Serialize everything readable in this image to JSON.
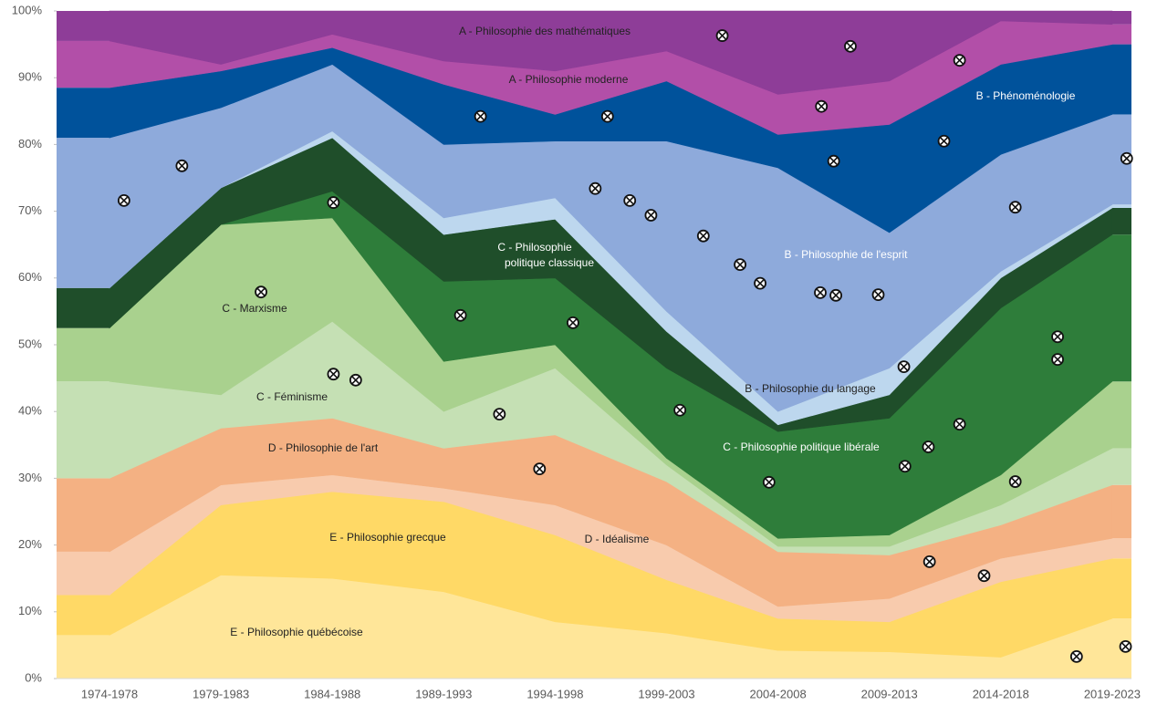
{
  "chart_data": {
    "type": "stacked_area_percent",
    "categories": [
      "1974-1978",
      "1979-1983",
      "1984-1988",
      "1989-1993",
      "1994-1998",
      "1999-2003",
      "2004-2008",
      "2009-2013",
      "2014-2018",
      "2019-2023"
    ],
    "series": [
      {
        "name": "E - Philosophie québécoise",
        "color": "#ffe699",
        "values": [
          6.5,
          15.5,
          15,
          13,
          8.5,
          6.8,
          4.2,
          4,
          3.2,
          9
        ]
      },
      {
        "name": "E - Philosophie grecque",
        "color": "#ffd966",
        "values": [
          6,
          10.5,
          13,
          13.5,
          13,
          8,
          4.8,
          4.5,
          11.3,
          9
        ]
      },
      {
        "name": "D - Idéalisme",
        "color": "#f8cbad",
        "values": [
          6.5,
          3,
          2.5,
          2,
          4.5,
          5.2,
          1.8,
          3.5,
          3.5,
          3
        ]
      },
      {
        "name": "D - Philosophie de l'art",
        "color": "#f4b183",
        "values": [
          11,
          8.5,
          8.5,
          6,
          10.5,
          9.5,
          8.2,
          6.5,
          5,
          8
        ]
      },
      {
        "name": "C - Féminisme",
        "color": "#c5e0b4",
        "values": [
          14.5,
          5,
          14.5,
          5.5,
          10,
          2.5,
          0.8,
          1.3,
          3,
          5.5
        ]
      },
      {
        "name": "C - Marxisme",
        "color": "#a9d18e",
        "values": [
          8,
          25.5,
          15.5,
          7.5,
          3.5,
          1,
          1.2,
          1.7,
          4.5,
          10
        ]
      },
      {
        "name": "C - Philosophie politique libérale",
        "color": "#2e7d3a",
        "values": [
          0,
          0,
          4,
          12,
          10,
          13.5,
          16,
          17.5,
          25,
          22
        ]
      },
      {
        "name": "C - Philosophie politique classique",
        "color": "#1f4e2a",
        "values": [
          6,
          5.5,
          8,
          7,
          8.8,
          5.5,
          1,
          3.5,
          4.5,
          4
        ]
      },
      {
        "name": "B - Philosophie du langage",
        "color": "#bdd7ee",
        "values": [
          0,
          0,
          1,
          2.5,
          3.2,
          3,
          2,
          4,
          1,
          0.5
        ]
      },
      {
        "name": "B - Philosophie de l'esprit",
        "color": "#8eaadb",
        "values": [
          22.5,
          12,
          10,
          11,
          8.5,
          25.5,
          36.5,
          20.3,
          17.5,
          13.5
        ]
      },
      {
        "name": "B - Phénoménologie",
        "color": "#00529b",
        "values": [
          7.5,
          5.5,
          2.5,
          9,
          4,
          9,
          5,
          16.2,
          13.5,
          10.5
        ]
      },
      {
        "name": "A - Philosophie moderne",
        "color": "#b24fa8",
        "values": [
          7,
          1,
          2,
          3.5,
          6.5,
          4.5,
          6,
          6.5,
          6.5,
          3
        ]
      },
      {
        "name": "A - Philosophie des mathématiques",
        "color": "#8e3d98",
        "values": [
          4.5,
          8,
          3.5,
          7.5,
          9,
          6,
          12.5,
          10.5,
          1.5,
          2
        ]
      }
    ],
    "markers": {
      "x": [
        0.13,
        0.65,
        1.36,
        2.01,
        2.01,
        2.21,
        3.15,
        3.33,
        3.5,
        3.86,
        4.16,
        4.36,
        4.47,
        4.67,
        4.86,
        5.12,
        5.33,
        5.5,
        5.66,
        5.84,
        5.92,
        6.38,
        6.39,
        6.5,
        6.52,
        6.65,
        6.9,
        7.13,
        7.14,
        7.35,
        7.36,
        7.49,
        7.63,
        7.63,
        7.85,
        8.13,
        8.13,
        8.51,
        8.51,
        8.68,
        9.12,
        9.13
      ],
      "y": [
        71.6,
        76.8,
        57.9,
        71.3,
        45.6,
        44.7,
        54.4,
        84.2,
        39.6,
        31.4,
        53.3,
        73.4,
        84.2,
        71.6,
        69.4,
        40.2,
        66.3,
        96.3,
        62,
        59.2,
        29.4,
        57.8,
        85.7,
        77.5,
        57.4,
        94.7,
        57.5,
        46.7,
        31.8,
        34.7,
        17.5,
        80.5,
        92.6,
        38.1,
        15.4,
        70.6,
        29.5,
        51.2,
        47.8,
        3.3,
        4.8,
        77.9
      ]
    },
    "ylim": [
      0,
      100
    ],
    "yticks": [
      {
        "value": 0,
        "label": "0%"
      },
      {
        "value": 10,
        "label": "10%"
      },
      {
        "value": 20,
        "label": "20%"
      },
      {
        "value": 30,
        "label": "30%"
      },
      {
        "value": 40,
        "label": "40%"
      },
      {
        "value": 50,
        "label": "50%"
      },
      {
        "value": 60,
        "label": "60%"
      },
      {
        "value": 70,
        "label": "70%"
      },
      {
        "value": 80,
        "label": "80%"
      },
      {
        "value": 90,
        "label": "90%"
      },
      {
        "value": 100,
        "label": "100%"
      }
    ]
  }
}
